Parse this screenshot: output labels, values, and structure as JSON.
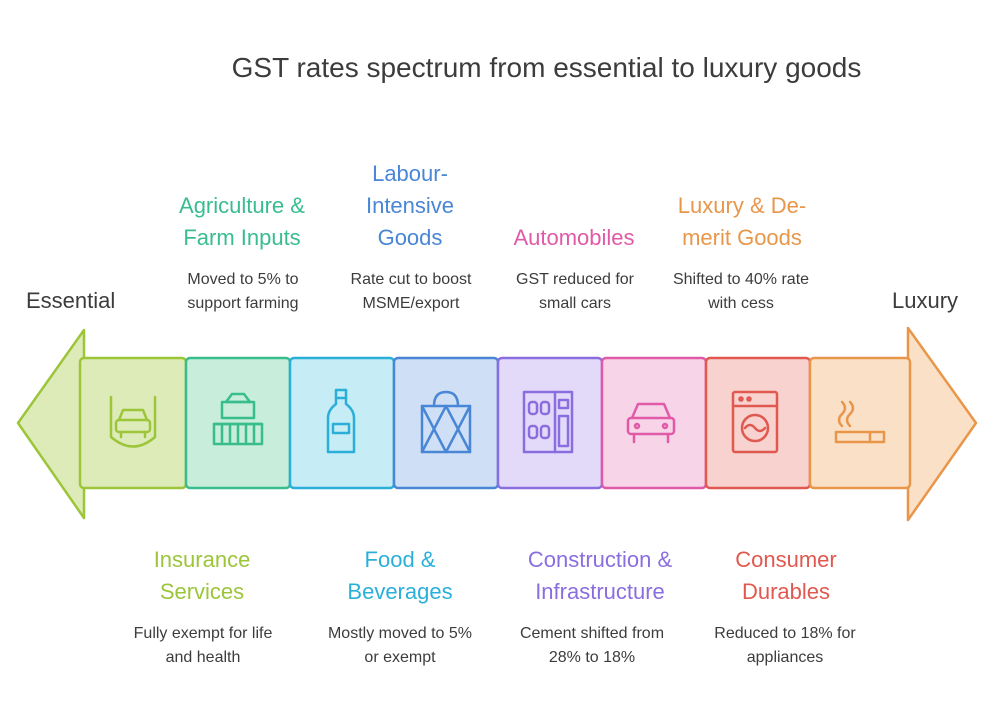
{
  "title": "GST rates spectrum from essential to luxury goods",
  "ends": {
    "left": "Essential",
    "right": "Luxury"
  },
  "colors": {
    "green": "#9cc53a",
    "teal": "#39bd8e",
    "cyan": "#2ab0d8",
    "blue": "#4a86d6",
    "purple": "#8a6ee0",
    "pink": "#e05aa8",
    "red": "#e0584f",
    "orange": "#e8974a"
  },
  "categories": [
    {
      "name": "Insurance\nServices",
      "desc": "Fully exempt for life\nand health",
      "color": "#9cc53a",
      "icon": "car-shield-icon"
    },
    {
      "name": "Agriculture &\nFarm Inputs",
      "desc": "Moved to 5% to\nsupport farming",
      "color": "#39bd8e",
      "icon": "harvester-icon"
    },
    {
      "name": "Food &\nBeverages",
      "desc": "Mostly moved to 5%\nor exempt",
      "color": "#2ab0d8",
      "icon": "bottle-icon"
    },
    {
      "name": "Labour-\nIntensive\nGoods",
      "desc": "Rate cut to boost\nMSME/export",
      "color": "#4a86d6",
      "icon": "bag-icon"
    },
    {
      "name": "Construction &\nInfrastructure",
      "desc": "Cement shifted from\n28% to 18%",
      "color": "#8a6ee0",
      "icon": "building-icon"
    },
    {
      "name": "Automobiles",
      "desc": "GST reduced for\nsmall cars",
      "color": "#e05aa8",
      "icon": "car-icon"
    },
    {
      "name": "Consumer\nDurables",
      "desc": "Reduced to 18% for\nappliances",
      "color": "#e0584f",
      "icon": "washing-machine-icon"
    },
    {
      "name": "Luxury & De-\nmerit Goods",
      "desc": "Shifted to 40% rate\nwith cess",
      "color": "#e8974a",
      "icon": "cigarette-icon"
    }
  ]
}
